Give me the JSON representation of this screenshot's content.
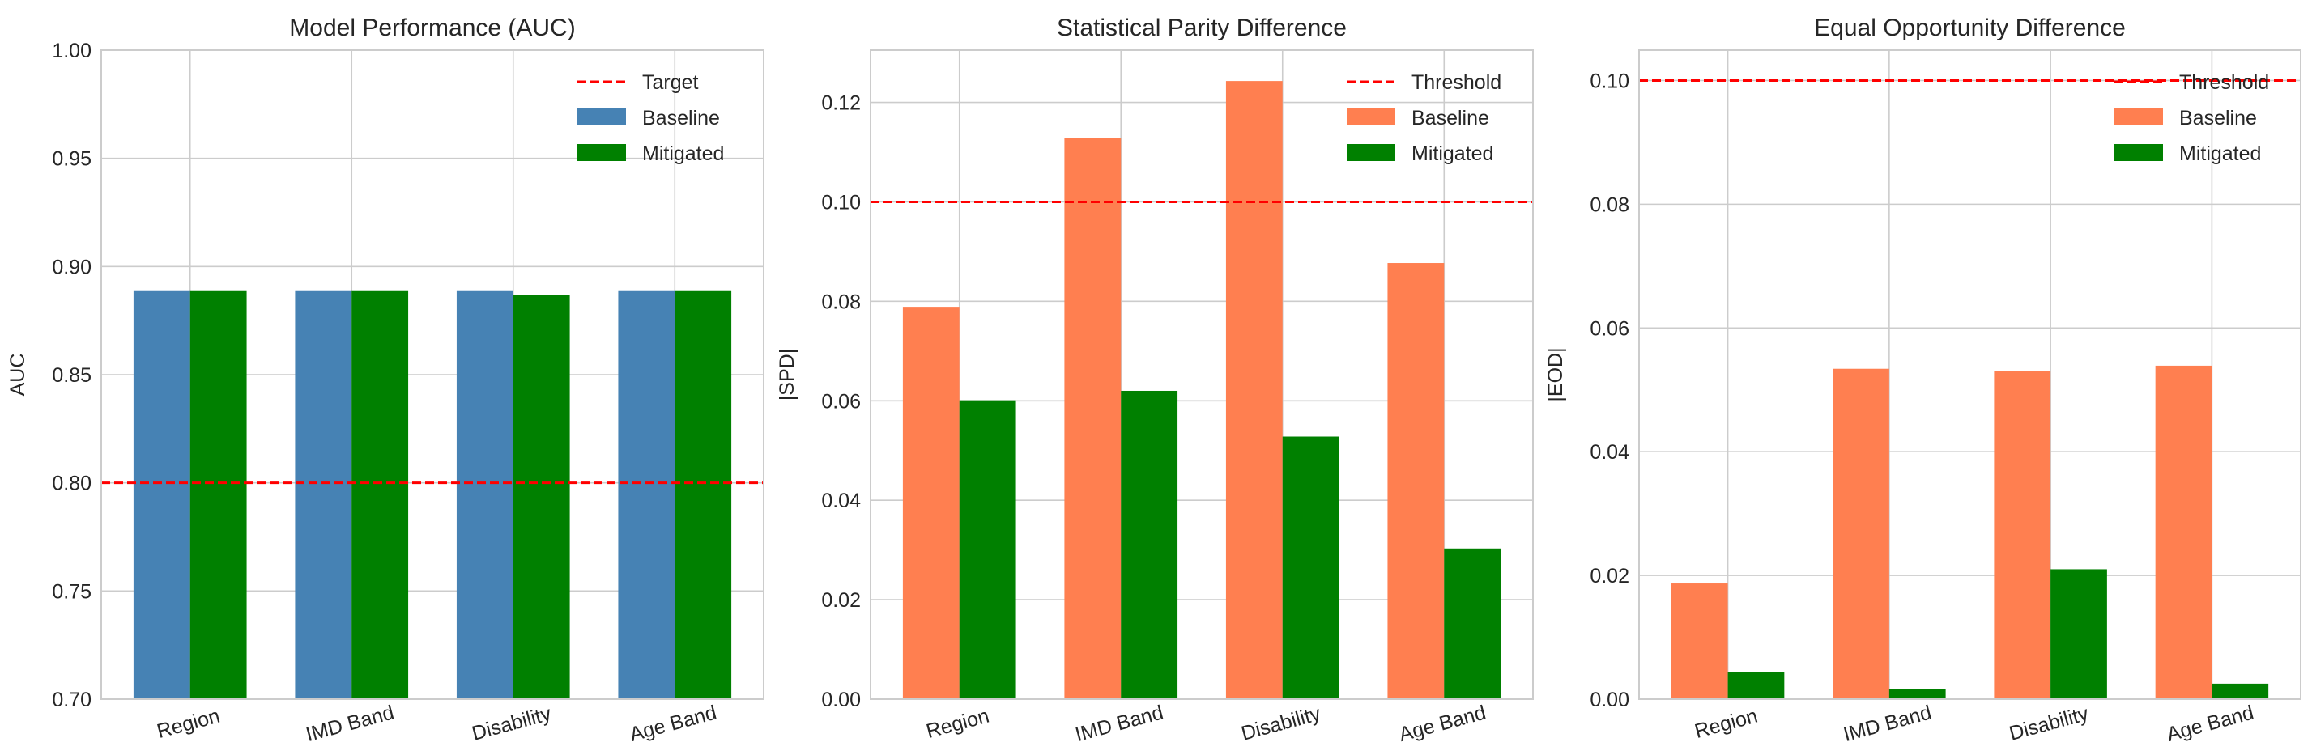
{
  "colors": {
    "baseline_auc": "#4682b4",
    "baseline_fair": "#ff7f50",
    "mitigated": "#008000",
    "reference": "#ff0000",
    "grid": "#cccccc"
  },
  "chart_data": [
    {
      "type": "bar",
      "title": "Model Performance (AUC)",
      "xlabel": "",
      "ylabel": "AUC",
      "categories": [
        "Region",
        "IMD Band",
        "Disability",
        "Age Band"
      ],
      "ylim": [
        0.7,
        1.0
      ],
      "yticks": [
        "0.70",
        "0.75",
        "0.80",
        "0.85",
        "0.90",
        "0.95",
        "1.00"
      ],
      "series": [
        {
          "name": "Baseline",
          "color": "#4682b4",
          "values": [
            0.889,
            0.889,
            0.889,
            0.889
          ]
        },
        {
          "name": "Mitigated",
          "color": "#008000",
          "values": [
            0.889,
            0.889,
            0.887,
            0.889
          ]
        }
      ],
      "reference_line": {
        "name": "Target",
        "value": 0.8
      },
      "grid": true,
      "legend": "top-right"
    },
    {
      "type": "bar",
      "title": "Statistical Parity Difference",
      "xlabel": "",
      "ylabel": "|SPD|",
      "categories": [
        "Region",
        "IMD Band",
        "Disability",
        "Age Band"
      ],
      "ylim": [
        0,
        0.1305
      ],
      "yticks": [
        "0.00",
        "0.02",
        "0.04",
        "0.06",
        "0.08",
        "0.10",
        "0.12"
      ],
      "series": [
        {
          "name": "Baseline",
          "color": "#ff7f50",
          "values": [
            0.0789,
            0.1128,
            0.1243,
            0.0877
          ]
        },
        {
          "name": "Mitigated",
          "color": "#008000",
          "values": [
            0.0601,
            0.062,
            0.0528,
            0.0303
          ]
        }
      ],
      "reference_line": {
        "name": "Threshold",
        "value": 0.1
      },
      "grid": true,
      "legend": "top-right"
    },
    {
      "type": "bar",
      "title": "Equal Opportunity Difference",
      "xlabel": "",
      "ylabel": "|EOD|",
      "categories": [
        "Region",
        "IMD Band",
        "Disability",
        "Age Band"
      ],
      "ylim": [
        0,
        0.1049
      ],
      "yticks": [
        "0.00",
        "0.02",
        "0.04",
        "0.06",
        "0.08",
        "0.10"
      ],
      "series": [
        {
          "name": "Baseline",
          "color": "#ff7f50",
          "values": [
            0.0187,
            0.0534,
            0.053,
            0.0539
          ]
        },
        {
          "name": "Mitigated",
          "color": "#008000",
          "values": [
            0.0044,
            0.0016,
            0.021,
            0.0025
          ]
        }
      ],
      "reference_line": {
        "name": "Threshold",
        "value": 0.1
      },
      "grid": true,
      "legend": "top-right"
    }
  ]
}
